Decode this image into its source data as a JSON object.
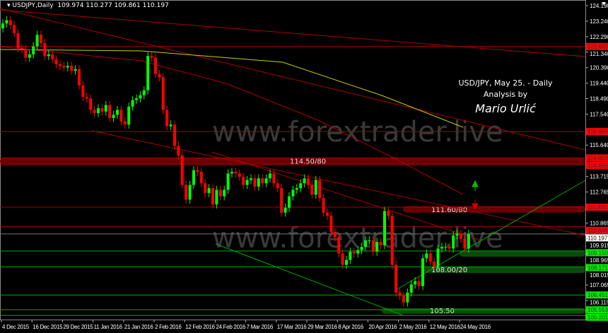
{
  "header": {
    "symbol": "USDJPY,Daily",
    "ohlc": "109.974 110.277 109.861 110.197"
  },
  "annotation": {
    "line1": "USD/JPY, May 25. - Daily",
    "line2": "Analysis by",
    "author": "Mario Urlić"
  },
  "watermark": "www.forextrader.live",
  "colors": {
    "background": "#000000",
    "bull": "#00ff00",
    "bear": "#ff0000",
    "resistance": "#8b0000",
    "support": "#006400",
    "ma_yellow": "#cccc00",
    "axis_text": "#ffffff"
  },
  "chart_data": {
    "type": "candlestick",
    "title": "",
    "ylim": [
      105.2,
      124.19
    ],
    "grid": false,
    "x_ticks": [
      "4 Dec 2015",
      "16 Dec 2015",
      "29 Dec 2015",
      "11 Jan 2016",
      "21 Jan 2016",
      "2 Feb 2016",
      "12 Feb 2016",
      "24 Feb 2016",
      "7 Mar 2016",
      "17 Mar 2016",
      "29 Mar 2016",
      "8 Apr 2016",
      "20 Apr 2016",
      "2 May 2016",
      "12 May 2016",
      "24 May 2016"
    ],
    "y_ticks": [
      "124.190",
      "123.240",
      "122.290",
      "121.340",
      "120.390",
      "119.440",
      "118.490",
      "117.540",
      "115.640",
      "113.715",
      "112.765",
      "110.865",
      "109.915",
      "108.965",
      "108.015",
      "107.065",
      "106.115"
    ],
    "first_open": 122.8,
    "close": [
      123.1,
      123.3,
      123.0,
      122.5,
      121.6,
      121.5,
      121.0,
      121.2,
      121.7,
      122.4,
      121.9,
      121.1,
      121.2,
      120.9,
      120.6,
      120.5,
      120.4,
      120.5,
      120.2,
      120.3,
      119.3,
      118.6,
      118.5,
      117.8,
      117.6,
      117.9,
      117.7,
      118.1,
      117.3,
      117.5,
      117.8,
      117.1,
      116.9,
      118.0,
      118.4,
      118.5,
      118.7,
      119.0,
      121.1,
      121.0,
      120.0,
      119.8,
      117.8,
      116.8,
      116.9,
      115.6,
      115.0,
      113.2,
      112.3,
      113.2,
      114.1,
      114.0,
      113.3,
      112.7,
      113.0,
      112.0,
      112.9,
      112.5,
      112.9,
      113.9,
      114.0,
      113.9,
      113.7,
      113.2,
      113.5,
      113.6,
      113.1,
      113.6,
      113.3,
      113.6,
      113.9,
      113.3,
      113.0,
      111.5,
      111.8,
      112.5,
      112.9,
      113.0,
      113.3,
      113.6,
      113.2,
      112.6,
      113.5,
      112.4,
      111.5,
      111.3,
      110.3,
      110.0,
      109.0,
      108.3,
      108.6,
      109.1,
      109.0,
      109.2,
      109.4,
      109.8,
      109.8,
      109.1,
      109.7,
      109.5,
      111.6,
      111.3,
      108.3,
      106.6,
      106.4,
      106.0,
      106.6,
      107.1,
      107.3,
      107.0,
      108.7,
      109.0,
      108.5,
      108.2,
      109.3,
      109.4,
      109.4,
      109.3,
      110.1,
      110.2,
      109.9,
      109.3,
      110.2
    ],
    "levels": [
      {
        "price": 121.687,
        "label": "121.687",
        "type": "resistance"
      },
      {
        "price": 116.469,
        "label": "116.469",
        "type": "resistance"
      },
      {
        "price": 114.853,
        "label": "114.853",
        "type": "resistance"
      },
      {
        "price": 114.466,
        "label": "114.466",
        "type": "resistance"
      },
      {
        "price": 111.835,
        "label": "111.835",
        "type": "resistance"
      },
      {
        "price": 110.648,
        "label": "110.648",
        "type": "resistance"
      },
      {
        "price": 110.197,
        "label": "110.197",
        "type": "current"
      },
      {
        "price": 109.15,
        "label": "109.150",
        "type": "support"
      },
      {
        "price": 108.171,
        "label": "108.171",
        "type": "support"
      },
      {
        "price": 106.451,
        "label": "106.451",
        "type": "support"
      },
      {
        "price": 105.553,
        "label": "105.553",
        "type": "support"
      },
      {
        "price": 105.201,
        "label": "105.201",
        "type": "support"
      }
    ],
    "zones": [
      {
        "label": "114.50/80",
        "low": 114.466,
        "high": 114.853,
        "type": "resistance"
      },
      {
        "label": "111.60/80",
        "low": 111.5,
        "high": 111.9,
        "type": "resistance"
      },
      {
        "label": "",
        "low": 108.9,
        "high": 109.15,
        "type": "support"
      },
      {
        "label": "108.00/20",
        "low": 107.8,
        "high": 108.171,
        "type": "support"
      },
      {
        "label": "105.50",
        "low": 105.3,
        "high": 105.65,
        "type": "support"
      }
    ]
  }
}
